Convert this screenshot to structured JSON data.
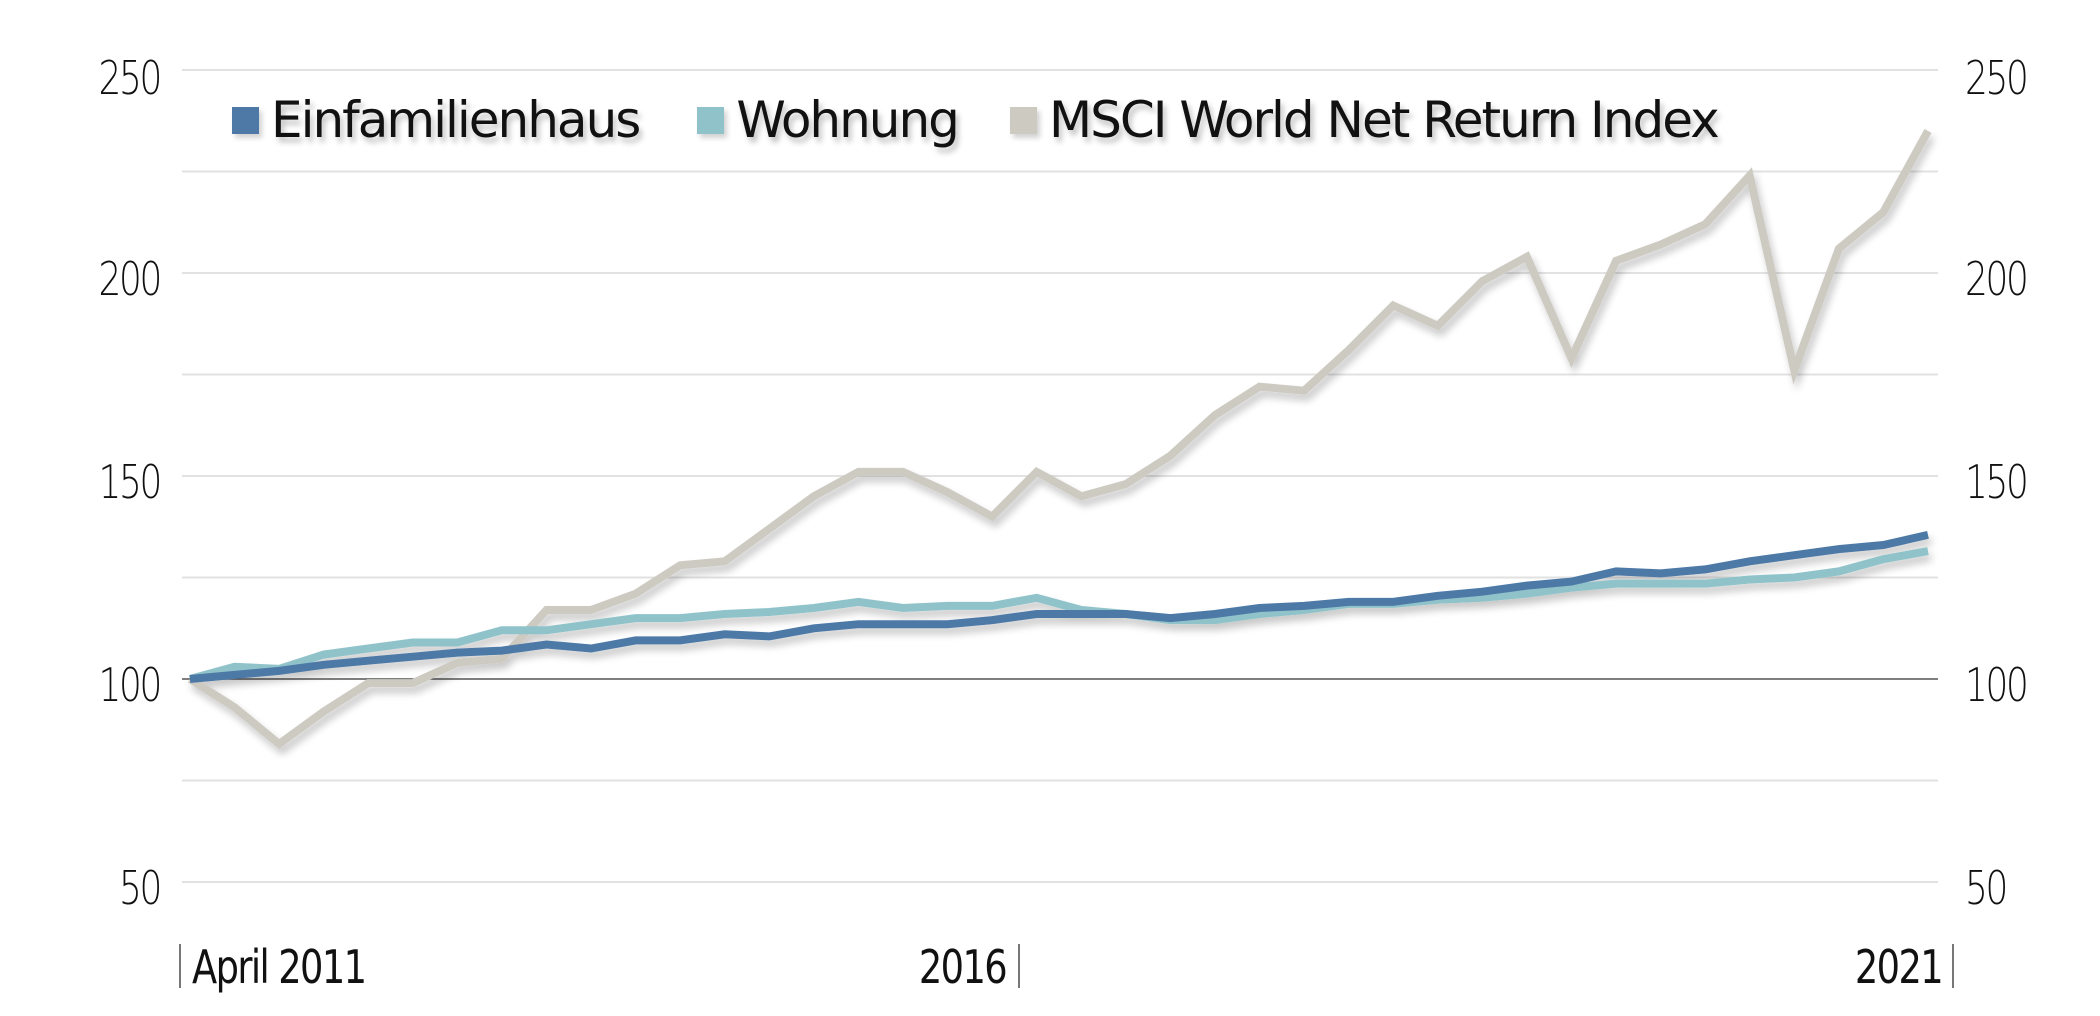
{
  "chart_data": {
    "type": "line",
    "title": "",
    "xlabel": "",
    "ylabel": "",
    "ylim": [
      50,
      250
    ],
    "yticks": [
      50,
      100,
      150,
      200,
      250
    ],
    "minor_gridlines": [
      75,
      125,
      175,
      225
    ],
    "baseline": 100,
    "grid": true,
    "legend_position": "top-left inside",
    "x_tick_labels": [
      "April 2011",
      "2016",
      "2021"
    ],
    "x_frequency": "quarterly",
    "x_count": 40,
    "series": [
      {
        "name": "Einfamilienhaus",
        "color": "#4e79a7",
        "values": [
          100,
          101,
          102,
          103.5,
          104.5,
          105.5,
          106.5,
          107,
          108.5,
          107.5,
          109.5,
          109.5,
          111,
          110.5,
          112.5,
          113.5,
          113.5,
          113.5,
          114.5,
          116,
          116,
          116,
          115,
          116,
          117.5,
          118,
          119,
          119,
          120.5,
          121.5,
          123,
          124,
          126.5,
          126,
          127,
          129,
          130.5,
          132,
          133,
          135.5
        ]
      },
      {
        "name": "Wohnung",
        "color": "#8fc3c9",
        "values": [
          100,
          103,
          102.5,
          106,
          107.5,
          109,
          109,
          112,
          112,
          113.5,
          115,
          115,
          116,
          116.5,
          117.5,
          119,
          117.5,
          118,
          118,
          120,
          117,
          116,
          114.5,
          114.5,
          116,
          117,
          118.5,
          118.5,
          119.5,
          120,
          121,
          122.5,
          123.5,
          123.5,
          123.5,
          124.5,
          125,
          126.5,
          129.5,
          131.5
        ]
      },
      {
        "name": "MSCI World Net Return Index",
        "color": "#cdcac2",
        "values": [
          100,
          93,
          84,
          92,
          99,
          99,
          104,
          105,
          117,
          117,
          121,
          128,
          129,
          137,
          145,
          151,
          151,
          146,
          140,
          151,
          145,
          148,
          155,
          165,
          172,
          171,
          181,
          192,
          187,
          198,
          204,
          179,
          203,
          207,
          212,
          224,
          176,
          206,
          215,
          235
        ]
      }
    ]
  },
  "axis": {
    "left_labels": [
      "250",
      "200",
      "150",
      "100",
      "50"
    ],
    "right_labels": [
      "250",
      "200",
      "150",
      "100",
      "50"
    ],
    "x_labels": {
      "start": "April 2011",
      "mid": "2016",
      "end": "2021"
    }
  },
  "legend": {
    "items": [
      {
        "label": "Einfamilienhaus",
        "color": "#4e79a7"
      },
      {
        "label": "Wohnung",
        "color": "#8fc3c9"
      },
      {
        "label": "MSCI World Net Return Index",
        "color": "#cdcac2"
      }
    ]
  },
  "colors": {
    "gridline": "#e2e2e2",
    "baseline": "#555555",
    "text": "#111111"
  }
}
